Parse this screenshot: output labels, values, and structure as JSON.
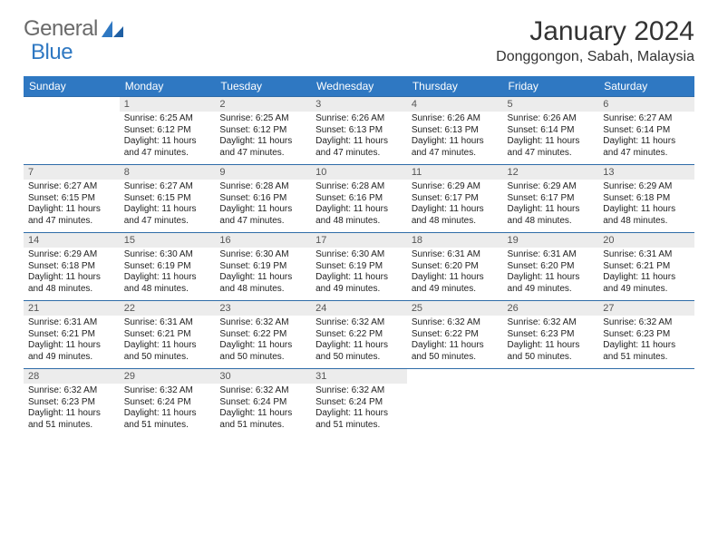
{
  "header": {
    "logo_part1": "General",
    "logo_part2": "Blue",
    "month_title": "January 2024",
    "location": "Donggongon, Sabah, Malaysia"
  },
  "colors": {
    "header_row_bg": "#2f78c2",
    "header_row_fg": "#ffffff",
    "daynum_bg": "#ececec",
    "daynum_fg": "#555555",
    "cell_border": "#2f6ca8",
    "logo_grey": "#6a6a6a",
    "logo_blue": "#2f78c2",
    "text": "#222222"
  },
  "typography": {
    "month_title_fontsize": 30,
    "location_fontsize": 16,
    "weekday_fontsize": 12,
    "daynum_fontsize": 11,
    "body_fontsize": 10
  },
  "calendar": {
    "weekdays": [
      "Sunday",
      "Monday",
      "Tuesday",
      "Wednesday",
      "Thursday",
      "Friday",
      "Saturday"
    ],
    "start_offset": 1,
    "days": [
      {
        "n": 1,
        "sunrise": "6:25 AM",
        "sunset": "6:12 PM",
        "daylight": "11 hours and 47 minutes."
      },
      {
        "n": 2,
        "sunrise": "6:25 AM",
        "sunset": "6:12 PM",
        "daylight": "11 hours and 47 minutes."
      },
      {
        "n": 3,
        "sunrise": "6:26 AM",
        "sunset": "6:13 PM",
        "daylight": "11 hours and 47 minutes."
      },
      {
        "n": 4,
        "sunrise": "6:26 AM",
        "sunset": "6:13 PM",
        "daylight": "11 hours and 47 minutes."
      },
      {
        "n": 5,
        "sunrise": "6:26 AM",
        "sunset": "6:14 PM",
        "daylight": "11 hours and 47 minutes."
      },
      {
        "n": 6,
        "sunrise": "6:27 AM",
        "sunset": "6:14 PM",
        "daylight": "11 hours and 47 minutes."
      },
      {
        "n": 7,
        "sunrise": "6:27 AM",
        "sunset": "6:15 PM",
        "daylight": "11 hours and 47 minutes."
      },
      {
        "n": 8,
        "sunrise": "6:27 AM",
        "sunset": "6:15 PM",
        "daylight": "11 hours and 47 minutes."
      },
      {
        "n": 9,
        "sunrise": "6:28 AM",
        "sunset": "6:16 PM",
        "daylight": "11 hours and 47 minutes."
      },
      {
        "n": 10,
        "sunrise": "6:28 AM",
        "sunset": "6:16 PM",
        "daylight": "11 hours and 48 minutes."
      },
      {
        "n": 11,
        "sunrise": "6:29 AM",
        "sunset": "6:17 PM",
        "daylight": "11 hours and 48 minutes."
      },
      {
        "n": 12,
        "sunrise": "6:29 AM",
        "sunset": "6:17 PM",
        "daylight": "11 hours and 48 minutes."
      },
      {
        "n": 13,
        "sunrise": "6:29 AM",
        "sunset": "6:18 PM",
        "daylight": "11 hours and 48 minutes."
      },
      {
        "n": 14,
        "sunrise": "6:29 AM",
        "sunset": "6:18 PM",
        "daylight": "11 hours and 48 minutes."
      },
      {
        "n": 15,
        "sunrise": "6:30 AM",
        "sunset": "6:19 PM",
        "daylight": "11 hours and 48 minutes."
      },
      {
        "n": 16,
        "sunrise": "6:30 AM",
        "sunset": "6:19 PM",
        "daylight": "11 hours and 48 minutes."
      },
      {
        "n": 17,
        "sunrise": "6:30 AM",
        "sunset": "6:19 PM",
        "daylight": "11 hours and 49 minutes."
      },
      {
        "n": 18,
        "sunrise": "6:31 AM",
        "sunset": "6:20 PM",
        "daylight": "11 hours and 49 minutes."
      },
      {
        "n": 19,
        "sunrise": "6:31 AM",
        "sunset": "6:20 PM",
        "daylight": "11 hours and 49 minutes."
      },
      {
        "n": 20,
        "sunrise": "6:31 AM",
        "sunset": "6:21 PM",
        "daylight": "11 hours and 49 minutes."
      },
      {
        "n": 21,
        "sunrise": "6:31 AM",
        "sunset": "6:21 PM",
        "daylight": "11 hours and 49 minutes."
      },
      {
        "n": 22,
        "sunrise": "6:31 AM",
        "sunset": "6:21 PM",
        "daylight": "11 hours and 50 minutes."
      },
      {
        "n": 23,
        "sunrise": "6:32 AM",
        "sunset": "6:22 PM",
        "daylight": "11 hours and 50 minutes."
      },
      {
        "n": 24,
        "sunrise": "6:32 AM",
        "sunset": "6:22 PM",
        "daylight": "11 hours and 50 minutes."
      },
      {
        "n": 25,
        "sunrise": "6:32 AM",
        "sunset": "6:22 PM",
        "daylight": "11 hours and 50 minutes."
      },
      {
        "n": 26,
        "sunrise": "6:32 AM",
        "sunset": "6:23 PM",
        "daylight": "11 hours and 50 minutes."
      },
      {
        "n": 27,
        "sunrise": "6:32 AM",
        "sunset": "6:23 PM",
        "daylight": "11 hours and 51 minutes."
      },
      {
        "n": 28,
        "sunrise": "6:32 AM",
        "sunset": "6:23 PM",
        "daylight": "11 hours and 51 minutes."
      },
      {
        "n": 29,
        "sunrise": "6:32 AM",
        "sunset": "6:24 PM",
        "daylight": "11 hours and 51 minutes."
      },
      {
        "n": 30,
        "sunrise": "6:32 AM",
        "sunset": "6:24 PM",
        "daylight": "11 hours and 51 minutes."
      },
      {
        "n": 31,
        "sunrise": "6:32 AM",
        "sunset": "6:24 PM",
        "daylight": "11 hours and 51 minutes."
      }
    ],
    "labels": {
      "sunrise_prefix": "Sunrise: ",
      "sunset_prefix": "Sunset: ",
      "daylight_prefix": "Daylight: "
    }
  }
}
